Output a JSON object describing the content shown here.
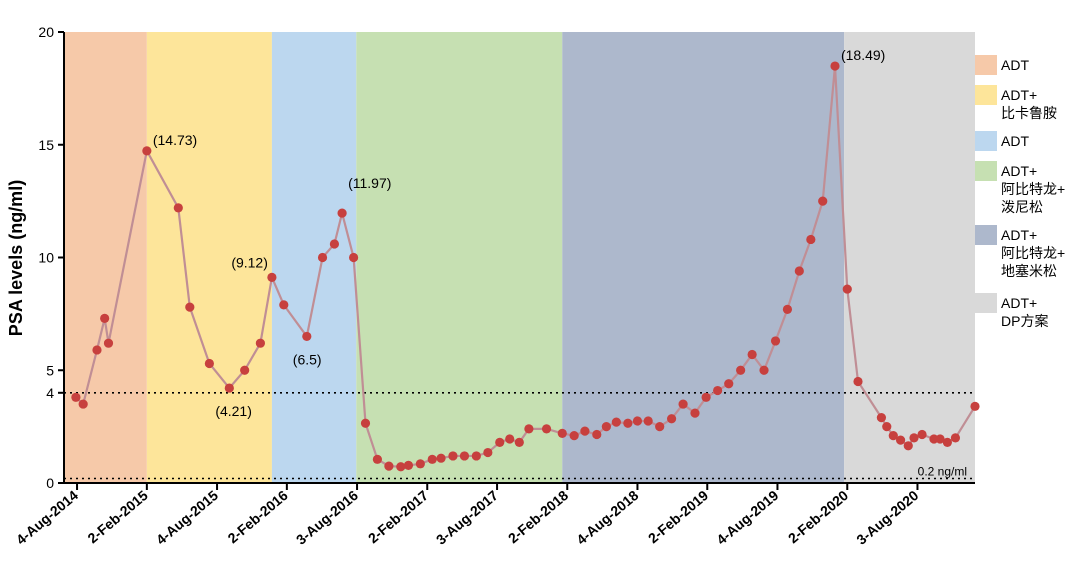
{
  "chart_data": {
    "type": "line",
    "ylabel": "PSA levels (ng/ml)",
    "xlabel": "",
    "ylim": [
      0,
      20
    ],
    "xlim": [
      "2014-07-01",
      "2020-12-31"
    ],
    "y_ticks": [
      0,
      4,
      5,
      10,
      15,
      20
    ],
    "x_ticks": [
      {
        "date": "2014-08-04",
        "label": "4-Aug-2014"
      },
      {
        "date": "2015-02-02",
        "label": "2-Feb-2015"
      },
      {
        "date": "2015-08-04",
        "label": "4-Aug-2015"
      },
      {
        "date": "2016-02-02",
        "label": "2-Feb-2016"
      },
      {
        "date": "2016-08-03",
        "label": "3-Aug-2016"
      },
      {
        "date": "2017-02-02",
        "label": "2-Feb-2017"
      },
      {
        "date": "2017-08-03",
        "label": "3-Aug-2017"
      },
      {
        "date": "2018-02-02",
        "label": "2-Feb-2018"
      },
      {
        "date": "2018-08-04",
        "label": "4-Aug-2018"
      },
      {
        "date": "2019-02-02",
        "label": "2-Feb-2019"
      },
      {
        "date": "2019-08-04",
        "label": "4-Aug-2019"
      },
      {
        "date": "2020-02-02",
        "label": "2-Feb-2020"
      },
      {
        "date": "2020-08-03",
        "label": "3-Aug-2020"
      }
    ],
    "reference_lines": [
      {
        "y": 4,
        "style": "dotted",
        "label": ""
      },
      {
        "y": 0.2,
        "style": "dotted",
        "label": "0.2 ng/ml"
      }
    ],
    "phases": [
      {
        "start": "2014-07-01",
        "end": "2015-02-02",
        "color": "#f6c9a9",
        "legend": [
          "ADT"
        ]
      },
      {
        "start": "2015-02-02",
        "end": "2015-12-25",
        "color": "#fde59a",
        "legend": [
          "ADT+",
          "比卡鲁胺"
        ]
      },
      {
        "start": "2015-12-25",
        "end": "2016-08-01",
        "color": "#bcd7ef",
        "legend": [
          "ADT"
        ]
      },
      {
        "start": "2016-08-01",
        "end": "2018-01-20",
        "color": "#c6e0b2",
        "legend": [
          "ADT+",
          "阿比特龙+",
          "泼尼松"
        ]
      },
      {
        "start": "2018-01-20",
        "end": "2020-01-25",
        "color": "#adb8cc",
        "legend": [
          "ADT+",
          "阿比特龙+",
          "地塞米松"
        ]
      },
      {
        "start": "2020-01-25",
        "end": "2020-12-31",
        "color": "#d9d9d9",
        "legend": [
          "ADT+",
          "DP方案"
        ]
      }
    ],
    "series": [
      {
        "line_color": "#c08e95",
        "marker_color": "#c7403e",
        "points": [
          [
            "2014-08-01",
            3.8
          ],
          [
            "2014-08-20",
            3.5
          ],
          [
            "2014-09-25",
            5.9
          ],
          [
            "2014-10-15",
            7.3
          ],
          [
            "2014-10-25",
            6.2
          ],
          [
            "2015-02-02",
            14.73
          ],
          [
            "2015-04-25",
            12.2
          ],
          [
            "2015-05-25",
            7.8
          ],
          [
            "2015-07-15",
            5.3
          ],
          [
            "2015-09-05",
            4.21
          ],
          [
            "2015-10-15",
            5.0
          ],
          [
            "2015-11-25",
            6.2
          ],
          [
            "2015-12-25",
            9.12
          ],
          [
            "2016-01-25",
            7.9
          ],
          [
            "2016-03-25",
            6.5
          ],
          [
            "2016-05-05",
            10.0
          ],
          [
            "2016-06-05",
            10.6
          ],
          [
            "2016-06-25",
            11.97
          ],
          [
            "2016-07-25",
            10.0
          ],
          [
            "2016-08-25",
            2.65
          ],
          [
            "2016-09-25",
            1.05
          ],
          [
            "2016-10-25",
            0.75
          ],
          [
            "2016-11-25",
            0.72
          ],
          [
            "2016-12-15",
            0.78
          ],
          [
            "2017-01-15",
            0.85
          ],
          [
            "2017-02-15",
            1.05
          ],
          [
            "2017-03-10",
            1.1
          ],
          [
            "2017-04-10",
            1.2
          ],
          [
            "2017-05-10",
            1.2
          ],
          [
            "2017-06-10",
            1.2
          ],
          [
            "2017-07-10",
            1.35
          ],
          [
            "2017-08-10",
            1.8
          ],
          [
            "2017-09-05",
            1.95
          ],
          [
            "2017-09-30",
            1.8
          ],
          [
            "2017-10-25",
            2.4
          ],
          [
            "2017-12-10",
            2.4
          ],
          [
            "2018-01-20",
            2.2
          ],
          [
            "2018-02-20",
            2.1
          ],
          [
            "2018-03-20",
            2.3
          ],
          [
            "2018-04-20",
            2.15
          ],
          [
            "2018-05-15",
            2.5
          ],
          [
            "2018-06-10",
            2.7
          ],
          [
            "2018-07-10",
            2.65
          ],
          [
            "2018-08-04",
            2.75
          ],
          [
            "2018-09-01",
            2.75
          ],
          [
            "2018-10-01",
            2.5
          ],
          [
            "2018-11-01",
            2.85
          ],
          [
            "2018-12-01",
            3.5
          ],
          [
            "2019-01-01",
            3.1
          ],
          [
            "2019-01-30",
            3.8
          ],
          [
            "2019-03-01",
            4.1
          ],
          [
            "2019-03-30",
            4.4
          ],
          [
            "2019-04-30",
            5.0
          ],
          [
            "2019-05-30",
            5.7
          ],
          [
            "2019-06-30",
            5.0
          ],
          [
            "2019-07-30",
            6.3
          ],
          [
            "2019-08-30",
            7.7
          ],
          [
            "2019-09-30",
            9.4
          ],
          [
            "2019-10-30",
            10.8
          ],
          [
            "2019-11-30",
            12.5
          ],
          [
            "2020-01-01",
            18.49
          ],
          [
            "2020-02-02",
            8.6
          ],
          [
            "2020-03-01",
            4.5
          ],
          [
            "2020-05-01",
            2.9
          ],
          [
            "2020-05-15",
            2.5
          ],
          [
            "2020-06-01",
            2.1
          ],
          [
            "2020-06-20",
            1.9
          ],
          [
            "2020-07-10",
            1.65
          ],
          [
            "2020-07-25",
            2.0
          ],
          [
            "2020-08-15",
            2.15
          ],
          [
            "2020-09-15",
            1.95
          ],
          [
            "2020-10-01",
            1.95
          ],
          [
            "2020-10-20",
            1.8
          ],
          [
            "2020-11-10",
            2.0
          ],
          [
            "2020-12-31",
            3.4
          ]
        ]
      }
    ],
    "annotations": [
      {
        "x": "2015-02-02",
        "y": 14.73,
        "text": "(14.73)",
        "pos": "right"
      },
      {
        "x": "2015-09-05",
        "y": 4.21,
        "text": "(4.21)",
        "pos": "below"
      },
      {
        "x": "2015-12-25",
        "y": 9.12,
        "text": "(9.12)",
        "pos": "upper-left"
      },
      {
        "x": "2016-03-25",
        "y": 6.5,
        "text": "(6.5)",
        "pos": "below"
      },
      {
        "x": "2016-06-25",
        "y": 11.97,
        "text": "(11.97)",
        "pos": "upper-right"
      },
      {
        "x": "2020-01-01",
        "y": 18.49,
        "text": "(18.49)",
        "pos": "right"
      }
    ],
    "grid": false,
    "legend_position": "right"
  }
}
